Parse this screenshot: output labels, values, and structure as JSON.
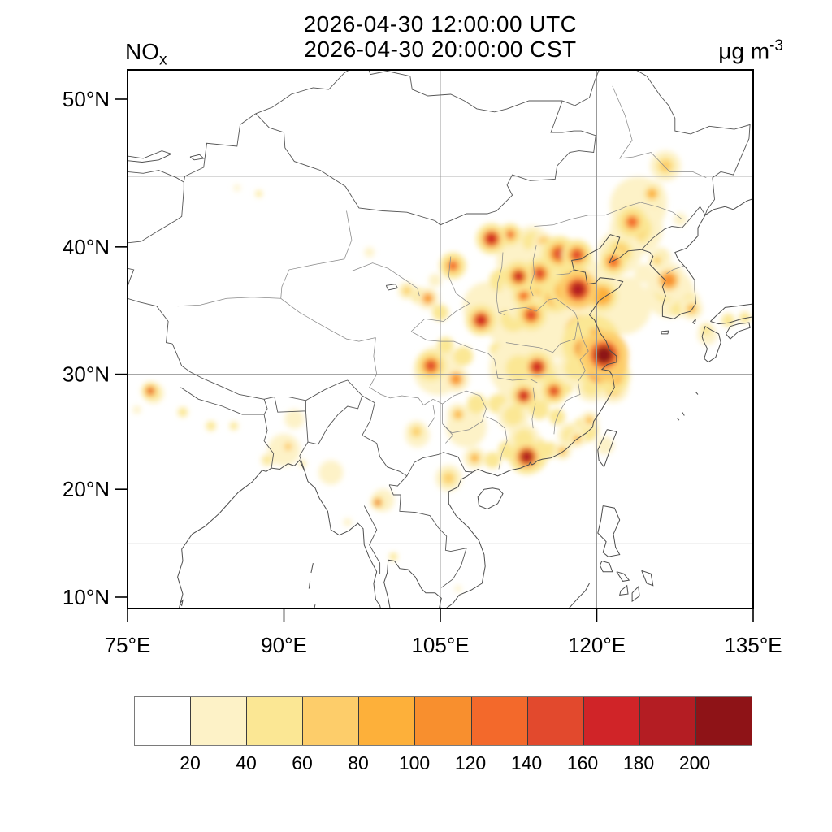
{
  "title": {
    "line1": "2026-04-30 12:00:00 UTC",
    "line2": "2026-04-30 20:00:00 CST"
  },
  "variable_label": {
    "base": "NO",
    "subscript": "x"
  },
  "units_label": {
    "base": "μg m",
    "superscript": "-3"
  },
  "axes": {
    "lat_ticks": [
      {
        "label": "50°N",
        "value": 50
      },
      {
        "label": "40°N",
        "value": 40
      },
      {
        "label": "30°N",
        "value": 30
      },
      {
        "label": "20°N",
        "value": 20
      },
      {
        "label": "10°N",
        "value": 10
      }
    ],
    "lon_ticks": [
      {
        "label": "75°E",
        "value": 75
      },
      {
        "label": "90°E",
        "value": 90
      },
      {
        "label": "105°E",
        "value": 105
      },
      {
        "label": "120°E",
        "value": 120
      },
      {
        "label": "135°E",
        "value": 135
      }
    ],
    "grid_lats": [
      15,
      30,
      45
    ],
    "grid_lons": [
      90,
      105,
      120
    ]
  },
  "colorbar": {
    "boundary_labels": [
      "20",
      "40",
      "60",
      "80",
      "100",
      "120",
      "140",
      "160",
      "180",
      "200"
    ]
  },
  "chart_data": {
    "type": "heatmap",
    "variable": "NOx",
    "units": "μg m-3",
    "valid_time_utc": "2026-04-30 12:00:00 UTC",
    "valid_time_cst": "2026-04-30 20:00:00 CST",
    "projection": "mercator",
    "lon_range": [
      75,
      135
    ],
    "lat_range": [
      8.9,
      51.9
    ],
    "grid": true,
    "color_levels": [
      20,
      40,
      60,
      80,
      100,
      120,
      140,
      160,
      180,
      200
    ],
    "palette": [
      "#ffffff",
      "#fdf2c7",
      "#fbe794",
      "#fdcd6a",
      "#fdb03a",
      "#f88f2e",
      "#f3692b",
      "#e2492d",
      "#d02428",
      "#b41d23",
      "#8e1317"
    ],
    "max_region": "Yangtze River Delta ~(120.7E, 31.6N), peak values > 200 μg m-3",
    "hotspot_format": [
      "lon",
      "lat",
      "value_ug_m3",
      "radius_px"
    ],
    "hotspots": [
      [
        120.7,
        31.6,
        215,
        11
      ],
      [
        121.1,
        31.0,
        195,
        9
      ],
      [
        120.0,
        31.9,
        185,
        8
      ],
      [
        118.8,
        32.1,
        160,
        8
      ],
      [
        120.2,
        30.3,
        165,
        9
      ],
      [
        121.5,
        29.9,
        140,
        8
      ],
      [
        121.6,
        28.9,
        110,
        7
      ],
      [
        119.9,
        32.9,
        130,
        8
      ],
      [
        118.2,
        36.8,
        195,
        9
      ],
      [
        117.0,
        36.7,
        160,
        8
      ],
      [
        116.0,
        36.2,
        130,
        7
      ],
      [
        114.5,
        38.0,
        150,
        7
      ],
      [
        116.4,
        39.5,
        150,
        8
      ],
      [
        118.1,
        39.4,
        150,
        7
      ],
      [
        117.2,
        39.0,
        145,
        6
      ],
      [
        121.6,
        38.9,
        130,
        6
      ],
      [
        123.4,
        41.8,
        125,
        7
      ],
      [
        125.3,
        43.8,
        95,
        6
      ],
      [
        126.6,
        45.7,
        65,
        7
      ],
      [
        109.9,
        40.6,
        175,
        7
      ],
      [
        111.7,
        40.9,
        125,
        5
      ],
      [
        106.2,
        38.6,
        125,
        6
      ],
      [
        103.8,
        36.1,
        115,
        5
      ],
      [
        101.8,
        36.7,
        70,
        4
      ],
      [
        108.9,
        34.4,
        165,
        7
      ],
      [
        112.5,
        37.8,
        160,
        7
      ],
      [
        113.0,
        36.3,
        130,
        5
      ],
      [
        113.7,
        34.8,
        140,
        7
      ],
      [
        114.3,
        30.6,
        175,
        7
      ],
      [
        113.0,
        28.2,
        175,
        6
      ],
      [
        115.9,
        28.6,
        150,
        6
      ],
      [
        104.1,
        30.7,
        155,
        7
      ],
      [
        106.5,
        29.6,
        110,
        6
      ],
      [
        106.7,
        26.6,
        85,
        5
      ],
      [
        108.3,
        22.8,
        95,
        5
      ],
      [
        102.7,
        25.1,
        75,
        5
      ],
      [
        113.3,
        22.9,
        180,
        8
      ],
      [
        116.7,
        23.4,
        95,
        4
      ],
      [
        119.3,
        26.1,
        95,
        4
      ],
      [
        118.1,
        24.5,
        90,
        4
      ],
      [
        126.9,
        37.5,
        115,
        8
      ],
      [
        129.1,
        35.3,
        85,
        5
      ],
      [
        125.8,
        39.0,
        70,
        4
      ],
      [
        130.5,
        33.6,
        55,
        6
      ],
      [
        132.6,
        34.4,
        40,
        8
      ],
      [
        134.2,
        34.6,
        40,
        7
      ],
      [
        77.2,
        28.6,
        150,
        4
      ],
      [
        99.0,
        18.8,
        145,
        3
      ],
      [
        87.6,
        43.8,
        45,
        4
      ],
      [
        85.5,
        44.2,
        25,
        4
      ],
      [
        90.4,
        23.8,
        60,
        5
      ],
      [
        88.4,
        22.6,
        55,
        5
      ],
      [
        91.8,
        22.3,
        40,
        4
      ],
      [
        96.1,
        17.0,
        35,
        5
      ],
      [
        100.5,
        13.8,
        40,
        5
      ],
      [
        105.8,
        21.0,
        70,
        6
      ],
      [
        106.7,
        10.8,
        35,
        4
      ],
      [
        116.0,
        36.5,
        30,
        55
      ],
      [
        113.5,
        39.0,
        30,
        40
      ],
      [
        109.5,
        35.5,
        25,
        30
      ],
      [
        124.0,
        43.0,
        30,
        35
      ],
      [
        122.5,
        35.5,
        30,
        35
      ],
      [
        123.0,
        36.8,
        35,
        16
      ],
      [
        124.5,
        38.0,
        35,
        12
      ],
      [
        127.0,
        36.5,
        30,
        30
      ],
      [
        104.8,
        30.3,
        35,
        30
      ],
      [
        113.5,
        29.5,
        30,
        40
      ],
      [
        118.9,
        25.3,
        45,
        16
      ],
      [
        113.4,
        23.2,
        40,
        25
      ],
      [
        107.5,
        25.5,
        25,
        25
      ],
      [
        102.8,
        24.8,
        28,
        15
      ],
      [
        90.0,
        23.5,
        28,
        20
      ],
      [
        94.5,
        21.5,
        25,
        15
      ],
      [
        99.5,
        19.0,
        28,
        14
      ],
      [
        120.8,
        23.9,
        35,
        11
      ],
      [
        130.6,
        33.2,
        35,
        12
      ],
      [
        91.0,
        26.2,
        25,
        12
      ],
      [
        115.5,
        37.5,
        70,
        26
      ],
      [
        117.0,
        35.5,
        65,
        22
      ],
      [
        114.0,
        36.5,
        60,
        20
      ],
      [
        118.5,
        33.5,
        70,
        20
      ],
      [
        119.5,
        32.5,
        90,
        16
      ],
      [
        116.5,
        33.8,
        55,
        18
      ],
      [
        112.0,
        34.5,
        55,
        16
      ],
      [
        110.8,
        37.5,
        45,
        14
      ],
      [
        113.8,
        40.4,
        55,
        12
      ],
      [
        114.9,
        40.3,
        60,
        8
      ],
      [
        117.7,
        37.3,
        80,
        14
      ],
      [
        119.1,
        37.0,
        70,
        12
      ],
      [
        120.5,
        36.3,
        80,
        12
      ],
      [
        121.3,
        37.4,
        60,
        10
      ],
      [
        122.2,
        39.6,
        70,
        10
      ],
      [
        123.8,
        41.3,
        65,
        12
      ],
      [
        125.5,
        43.4,
        55,
        10
      ],
      [
        128.0,
        42.0,
        30,
        8
      ],
      [
        126.5,
        36.6,
        55,
        12
      ],
      [
        127.8,
        35.4,
        45,
        10
      ],
      [
        128.9,
        35.9,
        55,
        8
      ],
      [
        126.1,
        39.2,
        50,
        8
      ],
      [
        112.5,
        30.5,
        55,
        16
      ],
      [
        115.0,
        29.8,
        50,
        14
      ],
      [
        116.8,
        29.0,
        45,
        12
      ],
      [
        118.0,
        30.5,
        55,
        14
      ],
      [
        119.5,
        29.0,
        50,
        12
      ],
      [
        110.5,
        32.0,
        40,
        10
      ],
      [
        107.2,
        31.5,
        45,
        12
      ],
      [
        105.5,
        32.4,
        40,
        10
      ],
      [
        108.5,
        27.5,
        40,
        12
      ],
      [
        110.5,
        27.5,
        45,
        12
      ],
      [
        112.0,
        26.5,
        50,
        12
      ],
      [
        114.5,
        27.0,
        45,
        12
      ],
      [
        116.2,
        26.4,
        40,
        10
      ],
      [
        111.5,
        23.5,
        45,
        12
      ],
      [
        110.0,
        22.6,
        40,
        10
      ],
      [
        113.0,
        24.5,
        50,
        12
      ],
      [
        115.5,
        23.5,
        45,
        10
      ],
      [
        117.5,
        24.8,
        55,
        10
      ],
      [
        103.0,
        36.3,
        45,
        10
      ],
      [
        105.0,
        35.0,
        40,
        10
      ],
      [
        104.5,
        37.5,
        30,
        8
      ],
      [
        98.2,
        39.6,
        25,
        6
      ],
      [
        80.3,
        26.8,
        45,
        6
      ],
      [
        83.0,
        25.6,
        40,
        6
      ],
      [
        85.2,
        25.6,
        40,
        5
      ],
      [
        75.9,
        27.0,
        35,
        5
      ],
      [
        77.5,
        28.4,
        55,
        8
      ]
    ]
  }
}
